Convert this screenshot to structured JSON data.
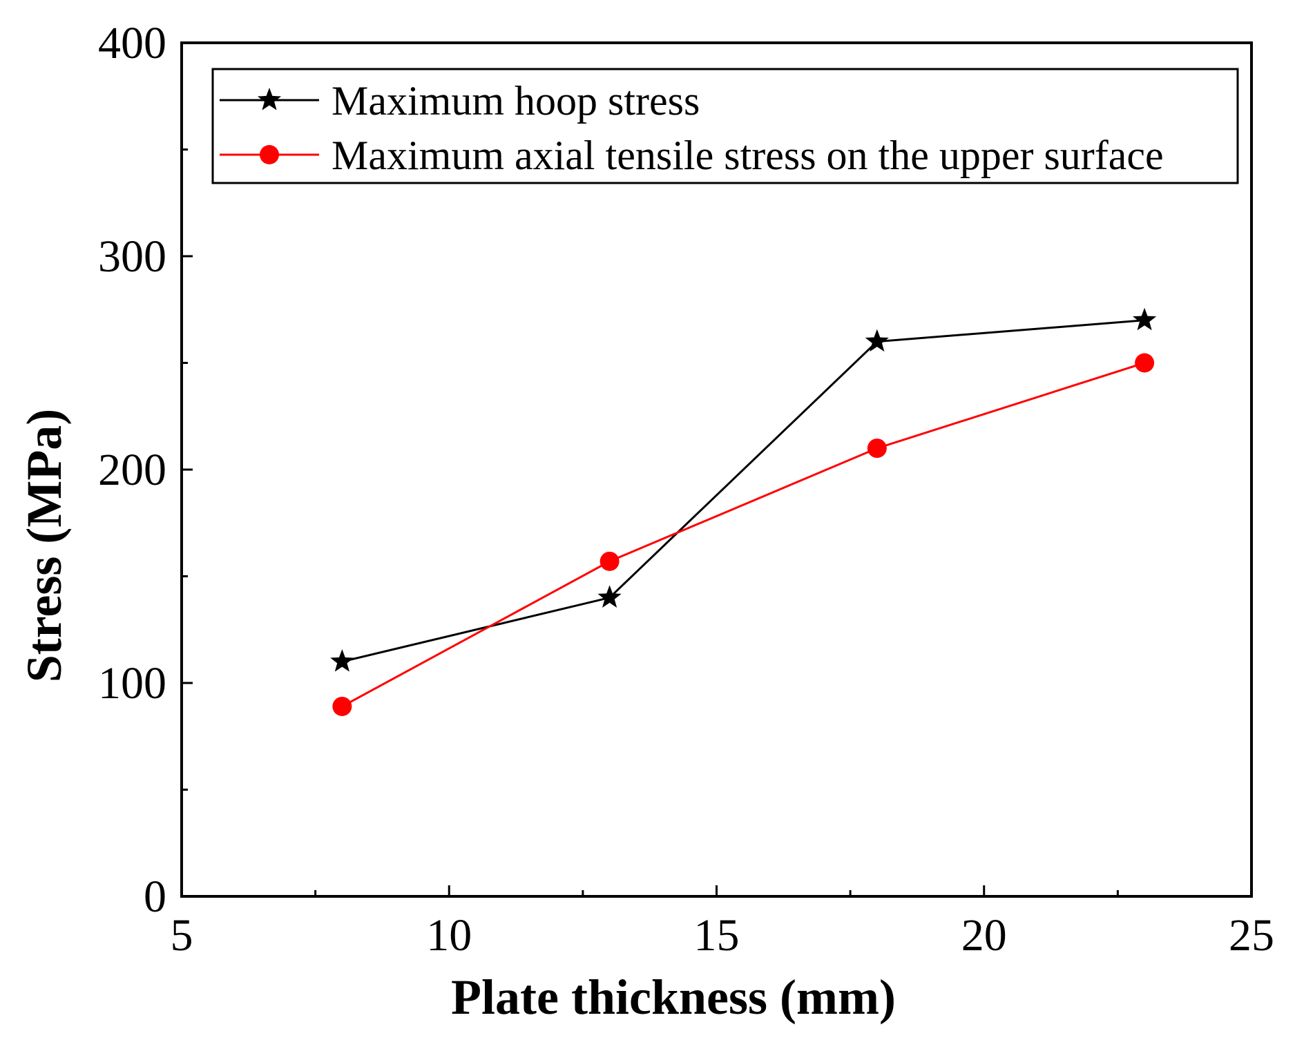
{
  "chart_data": {
    "type": "line",
    "title": "",
    "xlabel": "Plate thickness (mm)",
    "ylabel": "Stress (MPa)",
    "xlim": [
      5,
      25
    ],
    "ylim": [
      0,
      400
    ],
    "xticks": [
      5,
      10,
      15,
      20,
      25
    ],
    "yticks": [
      0,
      100,
      200,
      300,
      400
    ],
    "x_minor_step": 2.5,
    "y_minor_step": 50,
    "grid": false,
    "legend_position": "top",
    "series": [
      {
        "name": "Maximum hoop stress",
        "color": "#000000",
        "marker": "star",
        "x": [
          8,
          13,
          18,
          23
        ],
        "values": [
          110,
          140,
          260,
          270
        ]
      },
      {
        "name": "Maximum axial tensile stress on the upper surface",
        "color": "#ff0000",
        "marker": "circle",
        "x": [
          8,
          13,
          18,
          23
        ],
        "values": [
          89,
          157,
          210,
          250
        ]
      }
    ]
  }
}
